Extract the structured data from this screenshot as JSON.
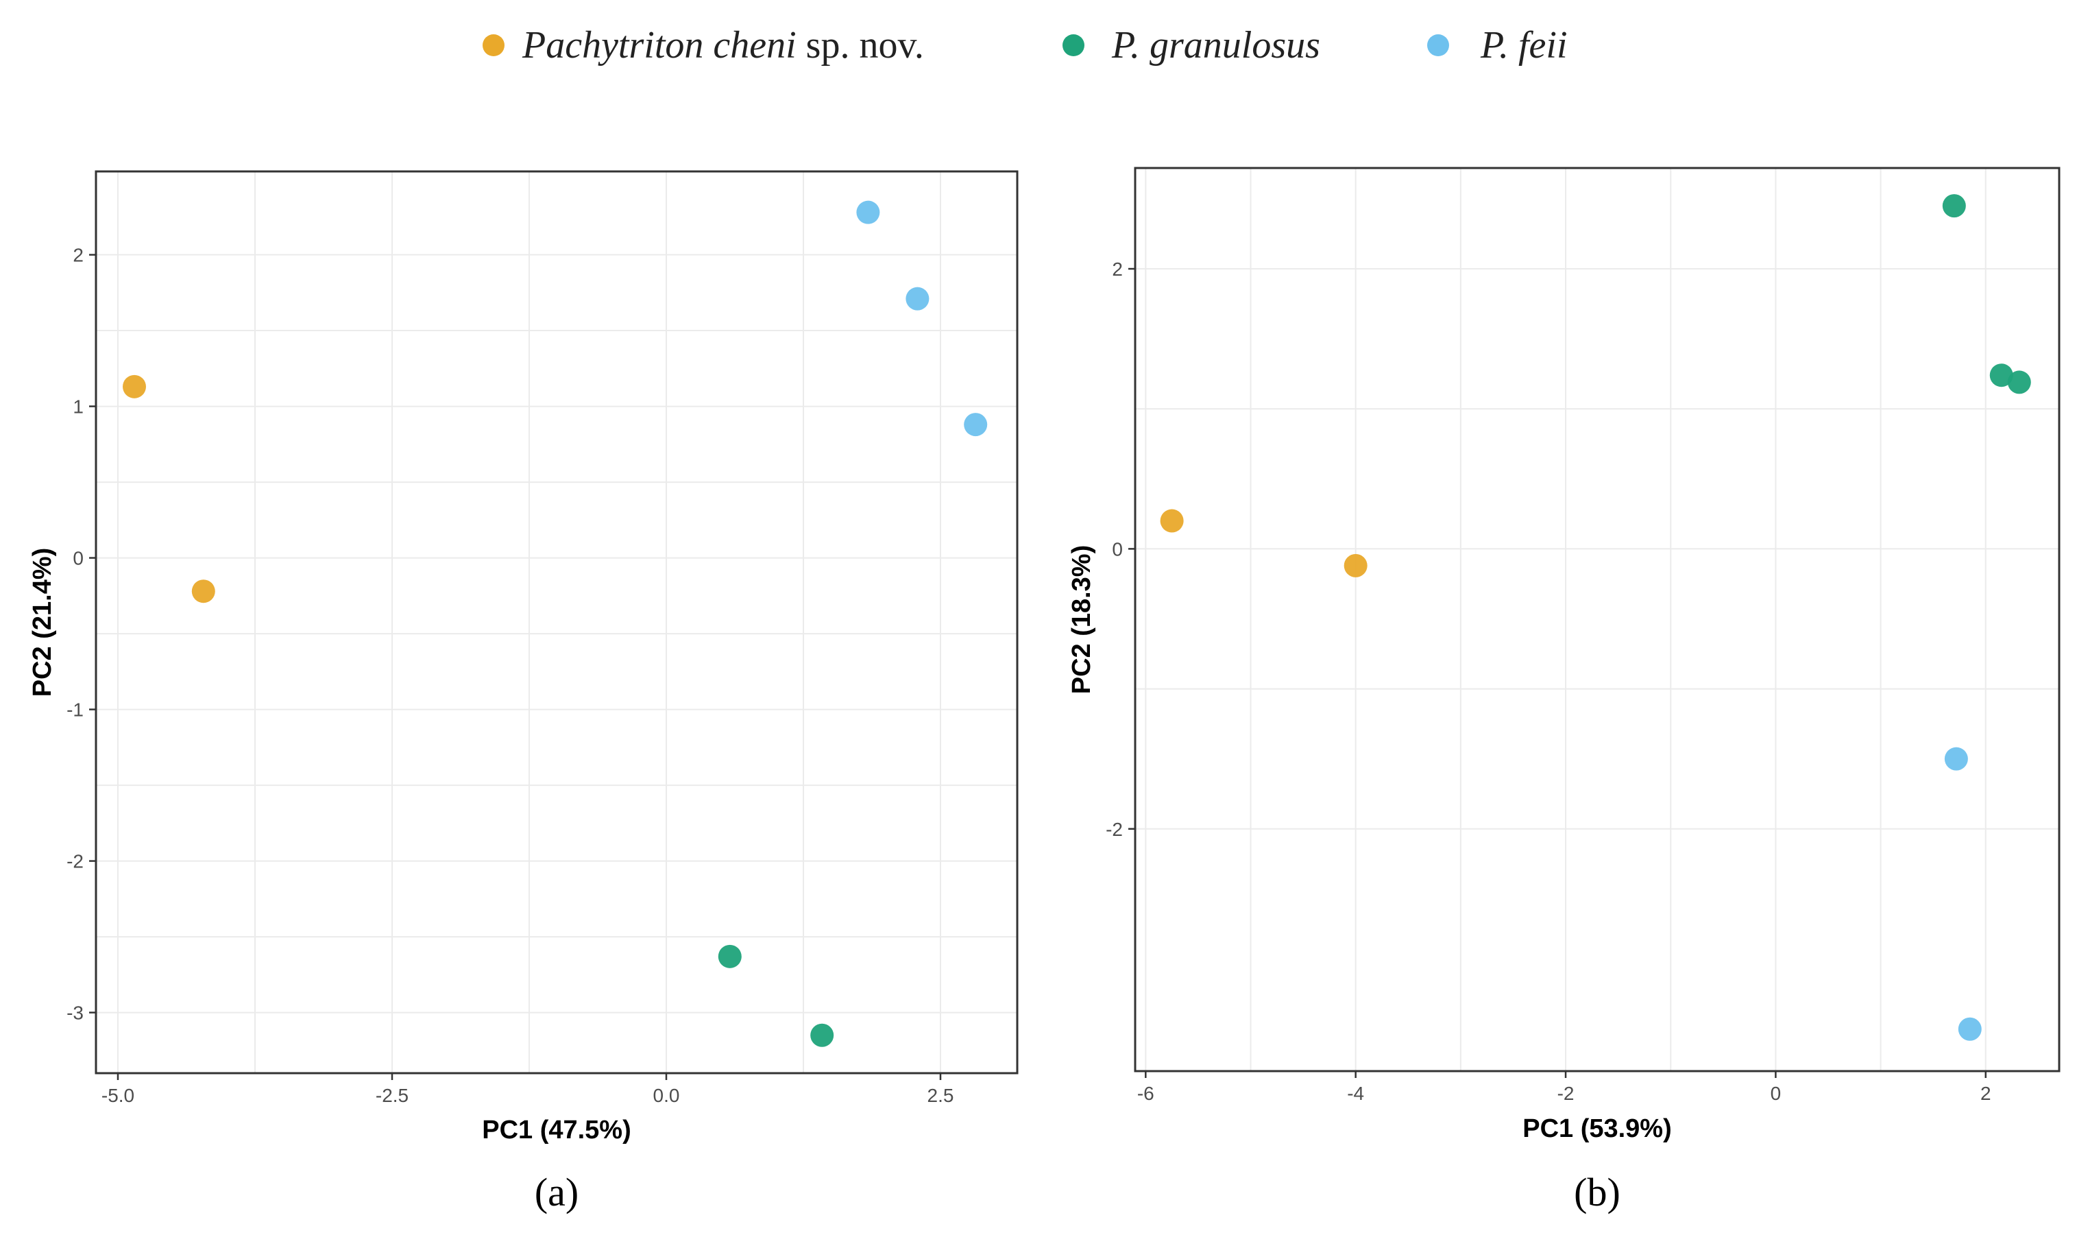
{
  "legend": [
    {
      "key": "cheni",
      "name": "Pachytriton cheni",
      "suffix": " sp. nov.",
      "color": "#E9A92B"
    },
    {
      "key": "granulosus",
      "name": "P. granulosus",
      "suffix": "",
      "color": "#1FA37A"
    },
    {
      "key": "feii",
      "name": "P. feii",
      "suffix": "",
      "color": "#6EC1EE"
    }
  ],
  "chart_data": [
    {
      "type": "scatter",
      "panel_label": "(a)",
      "xlabel": "PC1 (47.5%)",
      "ylabel": "PC2 (21.4%)",
      "xlim": [
        -5.2,
        3.2
      ],
      "ylim": [
        -3.4,
        2.55
      ],
      "xticks": [
        -5.0,
        -2.5,
        0.0,
        2.5
      ],
      "xtick_labels": [
        "-5.0",
        "-2.5",
        "0.0",
        "2.5"
      ],
      "yticks": [
        -3,
        -2,
        -1,
        0,
        1,
        2
      ],
      "ytick_labels": [
        "-3",
        "-2",
        "-1",
        "0",
        "1",
        "2"
      ],
      "series": [
        {
          "name": "Pachytriton cheni sp. nov.",
          "color": "#E9A92B",
          "points": [
            {
              "x": -4.85,
              "y": 1.13
            },
            {
              "x": -4.22,
              "y": -0.22
            }
          ]
        },
        {
          "name": "P. granulosus",
          "color": "#1FA37A",
          "points": [
            {
              "x": 0.58,
              "y": -2.63
            },
            {
              "x": 1.42,
              "y": -3.15
            }
          ]
        },
        {
          "name": "P. feii",
          "color": "#6EC1EE",
          "points": [
            {
              "x": 1.84,
              "y": 2.28
            },
            {
              "x": 2.29,
              "y": 1.71
            },
            {
              "x": 2.82,
              "y": 0.88
            }
          ]
        }
      ]
    },
    {
      "type": "scatter",
      "panel_label": "(b)",
      "xlabel": "PC1 (53.9%)",
      "ylabel": "PC2 (18.3%)",
      "xlim": [
        -6.1,
        2.7
      ],
      "ylim": [
        -3.73,
        2.72
      ],
      "xticks": [
        -6,
        -4,
        -2,
        0,
        2
      ],
      "xtick_labels": [
        "-6",
        "-4",
        "-2",
        "0",
        "2"
      ],
      "yticks": [
        -2,
        0,
        2
      ],
      "ytick_labels": [
        "-2",
        "0",
        "2"
      ],
      "series": [
        {
          "name": "Pachytriton cheni sp. nov.",
          "color": "#E9A92B",
          "points": [
            {
              "x": -5.75,
              "y": 0.2
            },
            {
              "x": -4.0,
              "y": -0.12
            }
          ]
        },
        {
          "name": "P. granulosus",
          "color": "#1FA37A",
          "points": [
            {
              "x": 1.7,
              "y": 2.45
            },
            {
              "x": 2.15,
              "y": 1.24
            },
            {
              "x": 2.32,
              "y": 1.19
            }
          ]
        },
        {
          "name": "P. feii",
          "color": "#6EC1EE",
          "points": [
            {
              "x": 1.72,
              "y": -1.5
            },
            {
              "x": 1.85,
              "y": -3.43
            }
          ]
        }
      ]
    }
  ]
}
